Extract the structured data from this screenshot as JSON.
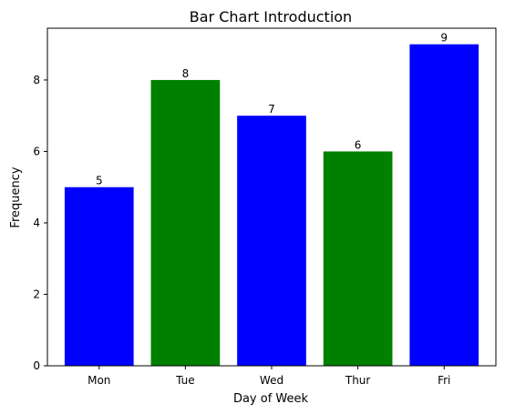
{
  "chart_data": {
    "type": "bar",
    "title": "Bar Chart Introduction",
    "xlabel": "Day of Week",
    "ylabel": "Frequency",
    "categories": [
      "Mon",
      "Tue",
      "Wed",
      "Thur",
      "Fri"
    ],
    "values": [
      5,
      8,
      7,
      6,
      9
    ],
    "colors": [
      "#0000ff",
      "#008000",
      "#0000ff",
      "#008000",
      "#0000ff"
    ],
    "ylim": [
      0,
      9.45
    ],
    "yticks": [
      0,
      2,
      4,
      6,
      8
    ],
    "grid": false,
    "data_labels": [
      "5",
      "8",
      "7",
      "6",
      "9"
    ]
  }
}
